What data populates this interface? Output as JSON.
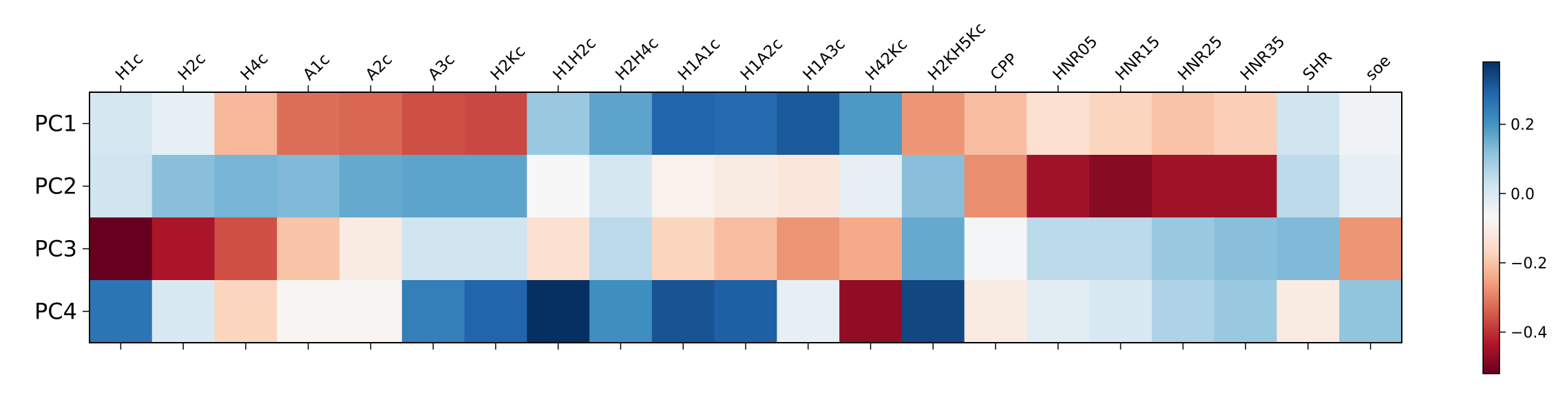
{
  "chart_data": {
    "type": "heatmap",
    "x_categories": [
      "H1c",
      "H2c",
      "H4c",
      "A1c",
      "A2c",
      "A3c",
      "H2Kc",
      "H1H2c",
      "H2H4c",
      "H1A1c",
      "H1A2c",
      "H1A3c",
      "H42Kc",
      "H2KH5Kc",
      "CPP",
      "HNR05",
      "HNR15",
      "HNR25",
      "HNR35",
      "SHR",
      "soe"
    ],
    "y_categories": [
      "PC1",
      "PC2",
      "PC3",
      "PC4"
    ],
    "values": [
      [
        0.01,
        -0.03,
        -0.22,
        -0.32,
        -0.33,
        -0.36,
        -0.37,
        0.1,
        0.17,
        0.29,
        0.28,
        0.31,
        0.19,
        -0.27,
        -0.21,
        -0.14,
        -0.17,
        -0.2,
        -0.18,
        0.02,
        -0.05
      ],
      [
        0.02,
        0.12,
        0.14,
        0.13,
        0.16,
        0.17,
        0.17,
        -0.07,
        0.01,
        -0.09,
        -0.11,
        -0.12,
        -0.03,
        0.12,
        -0.28,
        -0.45,
        -0.48,
        -0.45,
        -0.45,
        0.05,
        -0.03
      ],
      [
        -0.52,
        -0.44,
        -0.36,
        -0.2,
        -0.11,
        0.02,
        0.02,
        -0.14,
        0.05,
        -0.17,
        -0.21,
        -0.27,
        -0.24,
        0.16,
        -0.06,
        0.05,
        0.05,
        0.1,
        0.12,
        0.13,
        -0.27
      ],
      [
        0.26,
        0.0,
        -0.17,
        -0.08,
        -0.08,
        0.24,
        0.29,
        0.38,
        0.21,
        0.32,
        0.3,
        -0.03,
        -0.47,
        0.34,
        -0.11,
        -0.02,
        0.0,
        0.07,
        0.1,
        -0.11,
        0.11
      ]
    ],
    "colormap": "RdBu",
    "vmin": -0.52,
    "vmax": 0.38,
    "colorbar_ticks": [
      0.2,
      0.0,
      -0.2,
      -0.4
    ],
    "colorbar_tick_labels": [
      "0.2",
      "0.0",
      "−0.2",
      "−0.4"
    ]
  }
}
